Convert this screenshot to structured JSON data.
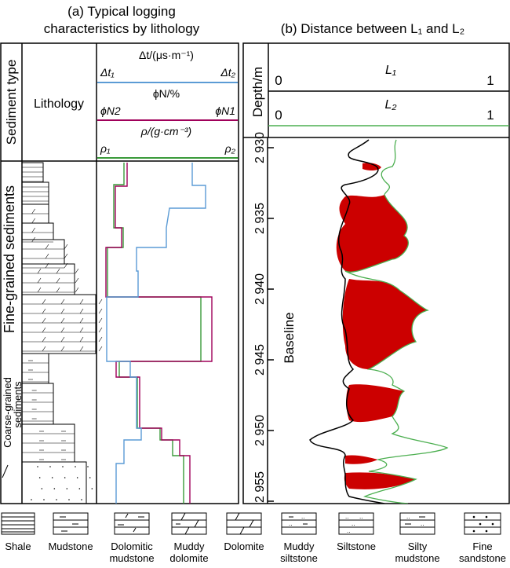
{
  "panel_a": {
    "title_line1": "(a) Typical logging",
    "title_line2": "characteristics by lithology",
    "col_sediment": "Sediment type",
    "col_lithology": "Lithology",
    "curve_header": {
      "dt": "Δt/(μs·m⁻¹)",
      "dt_left": "Δt₁",
      "dt_right": "Δt₂",
      "phi": "ϕN/%",
      "phi_left": "ϕN2",
      "phi_right": "ϕN1",
      "rho": "ρ/(g·cm⁻³)",
      "rho_left": "ρ₁",
      "rho_right": "ρ₂"
    },
    "fine_label": "Fine-grained sediments",
    "coarse_label": "Coarse-grained sediments"
  },
  "panel_b": {
    "title": "(b) Distance between L₁ and L₂",
    "depth_label": "Depth/m",
    "l1": "L₁",
    "l2": "L₂",
    "l1_min": "0",
    "l1_max": "1",
    "l2_min": "0",
    "l2_max": "1",
    "baseline_label": "Baseline",
    "depth_ticks": [
      "2 930",
      "2 935",
      "2 940",
      "2 945",
      "2 950",
      "2 955"
    ]
  },
  "legend": [
    {
      "label": "Shale",
      "pattern": "shale-pattern"
    },
    {
      "label": "Mudstone",
      "pattern": "mudstone-pattern"
    },
    {
      "label": "Dolomitic\nmudstone",
      "pattern": "dolomitic-mudstone-pattern"
    },
    {
      "label": "Muddy\ndolomite",
      "pattern": "muddy-dolomite-pattern"
    },
    {
      "label": "Dolomite",
      "pattern": "dolomite-pattern"
    },
    {
      "label": "Muddy\nsiltstone",
      "pattern": "muddy-siltstone-pattern"
    },
    {
      "label": "Siltstone",
      "pattern": "siltstone-pattern"
    },
    {
      "label": "Silty\nmudstone",
      "pattern": "silty-mudstone-pattern"
    },
    {
      "label": "Fine\nsandstone",
      "pattern": "fine-sandstone-pattern"
    }
  ],
  "colors": {
    "dt": "#5b9bd5",
    "phi": "#a0005a",
    "rho": "#3a9a3a",
    "l1": "#000000",
    "l2": "#4caf50",
    "fill": "#cc0000"
  }
}
